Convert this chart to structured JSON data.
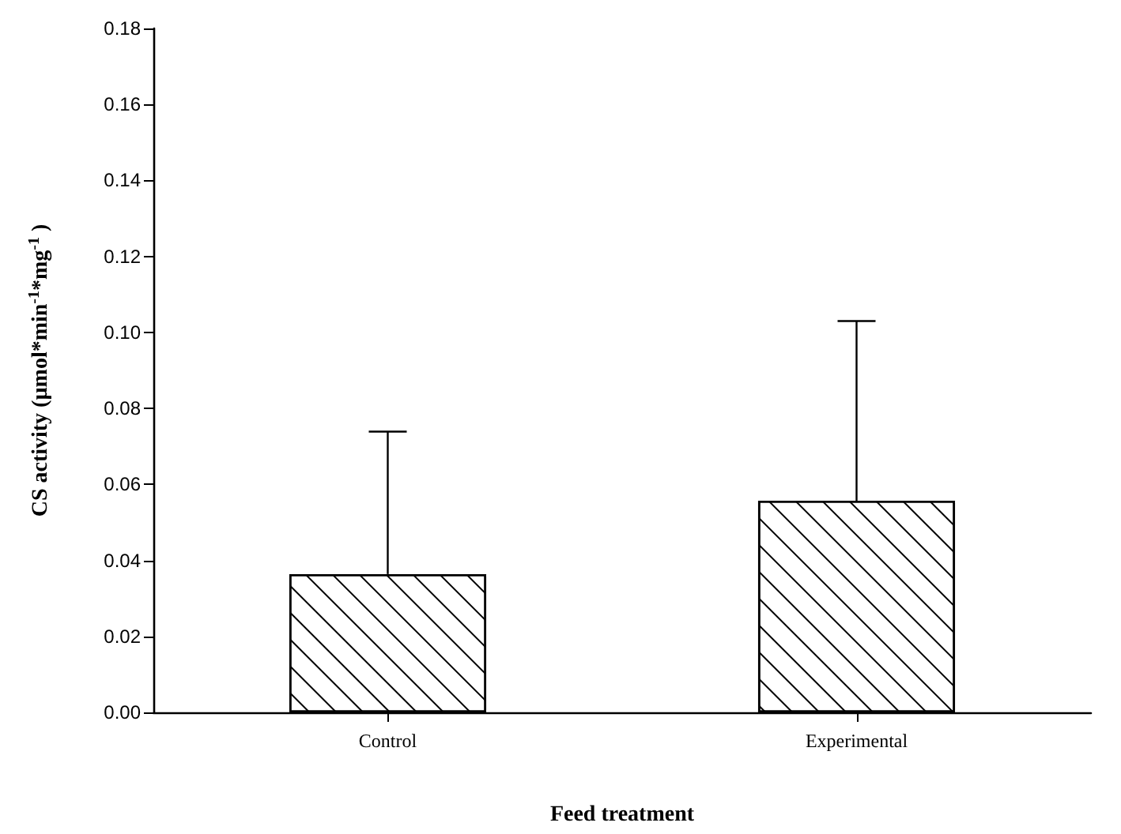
{
  "chart_data": {
    "type": "bar",
    "xlabel": "Feed treatment",
    "ylabel": "CS activity (µmol*min$^{-1}$*mg$^{-1}$ )",
    "categories": [
      "Control",
      "Experimental"
    ],
    "series": [
      {
        "color": "#ffffff",
        "values": [
          0.0364,
          0.0557
        ],
        "errors": [
          [
            0.0364,
            0.0739
          ],
          [
            0.0557,
            0.103
          ]
        ]
      }
    ],
    "ylim": [
      0,
      0.18
    ],
    "yticks": [
      {
        "value": 0,
        "label": "0.00"
      },
      {
        "value": 0.02,
        "label": "0.02"
      },
      {
        "value": 0.04,
        "label": "0.04"
      },
      {
        "value": 0.06,
        "label": "0.06"
      },
      {
        "value": 0.08,
        "label": "0.08"
      },
      {
        "value": 0.1,
        "label": "0.10"
      },
      {
        "value": 0.12,
        "label": "0.12"
      },
      {
        "value": 0.14,
        "label": "0.14"
      },
      {
        "value": 0.16,
        "label": "0.16"
      },
      {
        "value": 0.18,
        "label": "0.18"
      }
    ],
    "grid": false
  }
}
